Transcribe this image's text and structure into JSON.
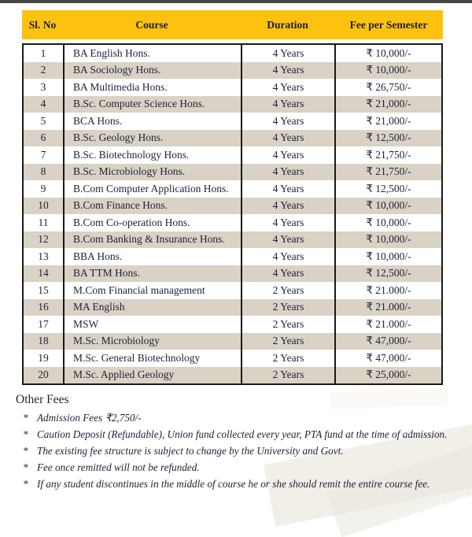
{
  "page": {
    "top_bar_color": "#474747",
    "background_color": "#ffffff"
  },
  "table": {
    "header": {
      "background_color": "#fdc20f",
      "text_color": "#1d1d38",
      "columns": [
        "Sl. No",
        "Course",
        "Duration",
        "Fee per Semester"
      ]
    },
    "alt_row_color": "#d9d2c5",
    "border_color": "#1a1a1a",
    "rows": [
      {
        "sl": "1",
        "course": "BA English Hons.",
        "duration": "4 Years",
        "fee": "₹ 10,000/-"
      },
      {
        "sl": "2",
        "course": "BA Sociology Hons.",
        "duration": "4 Years",
        "fee": "₹ 10,000/-"
      },
      {
        "sl": "3",
        "course": "BA Multimedia Hons.",
        "duration": "4 Years",
        "fee": "₹ 26,750/-"
      },
      {
        "sl": "4",
        "course": "B.Sc. Computer Science Hons.",
        "duration": "4 Years",
        "fee": "₹ 21,000/-"
      },
      {
        "sl": "5",
        "course": "BCA Hons.",
        "duration": "4 Years",
        "fee": "₹ 21,000/-"
      },
      {
        "sl": "6",
        "course": "B.Sc. Geology Hons.",
        "duration": "4 Years",
        "fee": "₹ 12,500/-"
      },
      {
        "sl": "7",
        "course": "B.Sc. Biotechnology Hons.",
        "duration": "4 Years",
        "fee": "₹ 21,750/-"
      },
      {
        "sl": "8",
        "course": "B.Sc. Microbiology Hons.",
        "duration": "4 Years",
        "fee": "₹ 21,750/-"
      },
      {
        "sl": "9",
        "course": "B.Com Computer Application Hons.",
        "duration": "4 Years",
        "fee": "₹ 12,500/-"
      },
      {
        "sl": "10",
        "course": "B.Com Finance Hons.",
        "duration": "4 Years",
        "fee": "₹ 10,000/-"
      },
      {
        "sl": "11",
        "course": "B.Com Co-operation Hons.",
        "duration": "4 Years",
        "fee": "₹ 10,000/-"
      },
      {
        "sl": "12",
        "course": "B.Com Banking & Insurance Hons.",
        "duration": "4 Years",
        "fee": "₹ 10,000/-"
      },
      {
        "sl": "13",
        "course": "BBA Hons.",
        "duration": "4 Years",
        "fee": "₹ 10,000/-"
      },
      {
        "sl": "14",
        "course": "BA TTM Hons.",
        "duration": "4 Years",
        "fee": "₹ 12,500/-"
      },
      {
        "sl": "15",
        "course": "M.Com Financial management",
        "duration": "2 Years",
        "fee": "₹ 21.000/-"
      },
      {
        "sl": "16",
        "course": "MA English",
        "duration": "2 Years",
        "fee": "₹ 21.000/-"
      },
      {
        "sl": "17",
        "course": "MSW",
        "duration": "2 Years",
        "fee": "₹ 21.000/-"
      },
      {
        "sl": "18",
        "course": "M.Sc. Microbiology",
        "duration": "2 Years",
        "fee": "₹ 47,000/-"
      },
      {
        "sl": "19",
        "course": "M.Sc. General Biotechnology",
        "duration": "2 Years",
        "fee": "₹ 47,000/-"
      },
      {
        "sl": "20",
        "course": "M.Sc. Applied Geology",
        "duration": "2 Years",
        "fee": "₹ 25,000/-"
      }
    ]
  },
  "other_fees": {
    "title": "Other Fees",
    "bullet_symbol": "*",
    "items": [
      "Admission Fees ₹2,750/-",
      "Caution Deposit (Refundable), Union fund collected every year, PTA fund at the time of admission.",
      "The existing fee structure is subject to change by the University and Govt.",
      "Fee once remitted will not be refunded.",
      "If any student discontinues in the middle of course he or she should remit the entire course fee."
    ]
  }
}
